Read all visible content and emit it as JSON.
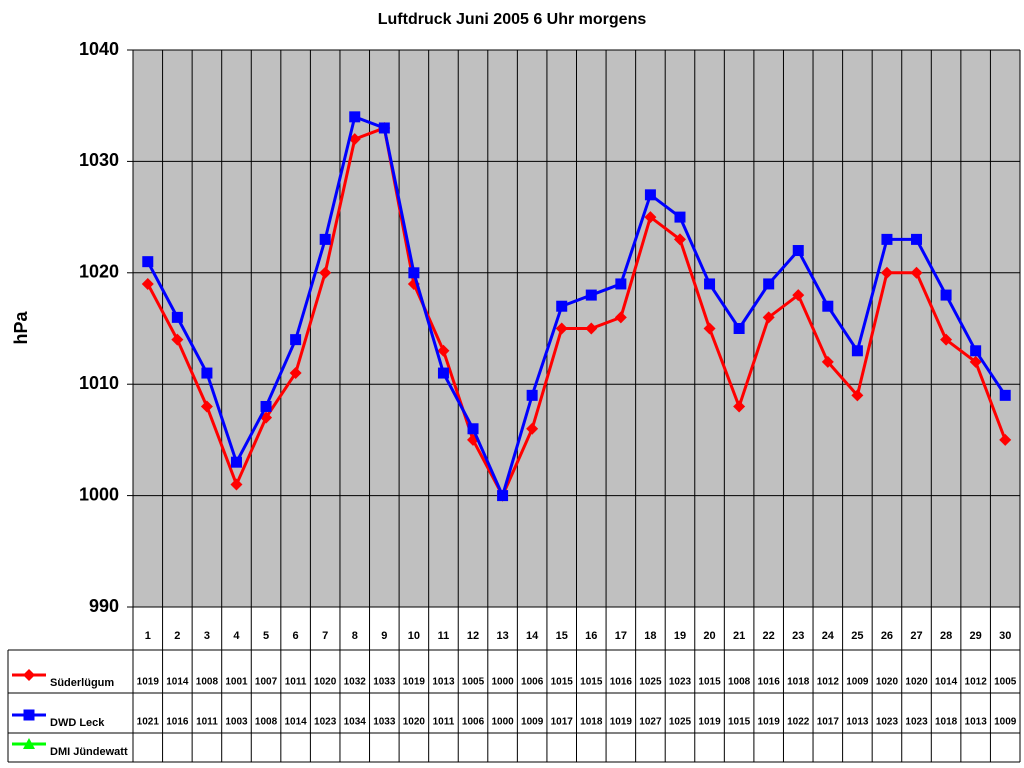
{
  "chart_data": {
    "type": "line",
    "title": "Luftdruck Juni 2005 6 Uhr morgens",
    "y_label": "hPa",
    "categories": [
      "1",
      "2",
      "3",
      "4",
      "5",
      "6",
      "7",
      "8",
      "9",
      "10",
      "11",
      "12",
      "13",
      "14",
      "15",
      "16",
      "17",
      "18",
      "19",
      "20",
      "21",
      "22",
      "23",
      "24",
      "25",
      "26",
      "27",
      "28",
      "29",
      "30"
    ],
    "series": [
      {
        "name": "Süderlügum",
        "color": "#ff0000",
        "marker": "diamond",
        "values": [
          1019,
          1014,
          1008,
          1001,
          1007,
          1011,
          1020,
          1032,
          1033,
          1019,
          1013,
          1005,
          1000,
          1006,
          1015,
          1015,
          1016,
          1025,
          1023,
          1015,
          1008,
          1016,
          1018,
          1012,
          1009,
          1020,
          1020,
          1014,
          1012,
          1005
        ]
      },
      {
        "name": "DWD Leck",
        "color": "#0000ff",
        "marker": "square",
        "values": [
          1021,
          1016,
          1011,
          1003,
          1008,
          1014,
          1023,
          1034,
          1033,
          1020,
          1011,
          1006,
          1000,
          1009,
          1017,
          1018,
          1019,
          1027,
          1025,
          1019,
          1015,
          1019,
          1022,
          1017,
          1013,
          1023,
          1023,
          1018,
          1013,
          1009
        ]
      },
      {
        "name": "DMI Jündewatt",
        "color": "#00ff00",
        "marker": "triangle",
        "values": [
          null,
          null,
          null,
          null,
          null,
          null,
          null,
          null,
          null,
          null,
          null,
          null,
          null,
          null,
          null,
          null,
          null,
          null,
          null,
          null,
          null,
          null,
          null,
          null,
          null,
          null,
          null,
          null,
          null,
          null
        ]
      }
    ],
    "ylim": [
      990,
      1040
    ],
    "yticks": [
      990,
      1000,
      1010,
      1020,
      1030,
      1040
    ],
    "grid": true,
    "data_table": true
  }
}
